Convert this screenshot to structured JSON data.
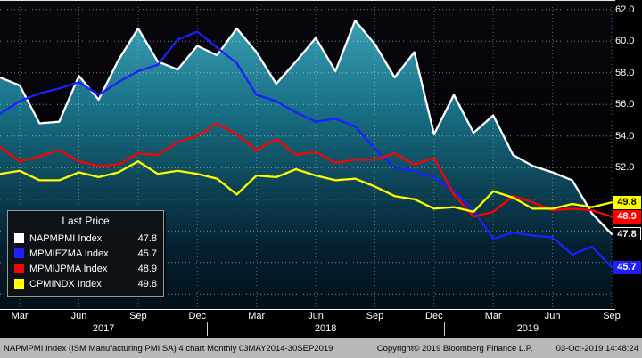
{
  "chart_data": {
    "type": "line",
    "title": "",
    "legend_title": "Last Price",
    "x": [
      "Feb 2017",
      "Mar 2017",
      "Apr 2017",
      "May 2017",
      "Jun 2017",
      "Jul 2017",
      "Aug 2017",
      "Sep 2017",
      "Oct 2017",
      "Nov 2017",
      "Dec 2017",
      "Jan 2018",
      "Feb 2018",
      "Mar 2018",
      "Apr 2018",
      "May 2018",
      "Jun 2018",
      "Jul 2018",
      "Aug 2018",
      "Sep 2018",
      "Oct 2018",
      "Nov 2018",
      "Dec 2018",
      "Jan 2019",
      "Feb 2019",
      "Mar 2019",
      "Apr 2019",
      "May 2019",
      "Jun 2019",
      "Jul 2019",
      "Aug 2019",
      "Sep 2019"
    ],
    "ylim": [
      43.0,
      62.6
    ],
    "y_ticks": [
      62.0,
      60.0,
      58.0,
      56.0,
      54.0,
      52.0
    ],
    "grid_values": [
      62,
      60,
      58,
      56,
      54,
      52,
      50,
      48,
      46,
      44
    ],
    "x_ticks": [
      {
        "label": "Mar",
        "i": 1
      },
      {
        "label": "Jun",
        "i": 4
      },
      {
        "label": "Sep",
        "i": 7
      },
      {
        "label": "Dec",
        "i": 10
      },
      {
        "label": "Mar",
        "i": 13
      },
      {
        "label": "Jun",
        "i": 16
      },
      {
        "label": "Sep",
        "i": 19
      },
      {
        "label": "Dec",
        "i": 22
      },
      {
        "label": "Mar",
        "i": 25
      },
      {
        "label": "Jun",
        "i": 28
      },
      {
        "label": "Sep",
        "i": 31
      }
    ],
    "years": [
      {
        "label": "2017",
        "center_i": 5.25
      },
      {
        "label": "2018",
        "center_i": 16.5
      },
      {
        "label": "2019",
        "center_i": 26.75
      }
    ],
    "year_separators_i": [
      10.5,
      22.5
    ],
    "series": [
      {
        "name": "NAPMPMI Index",
        "color": "#ffffff",
        "area": true,
        "last_price": "47.8",
        "values": [
          57.7,
          57.2,
          54.8,
          54.9,
          57.8,
          56.3,
          58.8,
          60.8,
          58.7,
          58.2,
          59.7,
          59.1,
          60.8,
          59.3,
          57.3,
          58.7,
          60.2,
          58.1,
          61.3,
          59.8,
          57.7,
          59.3,
          54.1,
          56.6,
          54.2,
          55.3,
          52.8,
          52.1,
          51.7,
          51.2,
          49.1,
          47.8
        ]
      },
      {
        "name": "MPMIEZMA Index",
        "color": "#1e1eff",
        "area": false,
        "last_price": "45.7",
        "values": [
          55.4,
          56.2,
          56.7,
          57.0,
          57.4,
          56.6,
          57.4,
          58.1,
          58.5,
          60.1,
          60.6,
          59.6,
          58.6,
          56.6,
          56.2,
          55.5,
          54.9,
          55.1,
          54.6,
          53.2,
          52.0,
          51.8,
          51.4,
          50.5,
          49.3,
          47.5,
          47.9,
          47.7,
          47.6,
          46.5,
          47.0,
          45.7
        ]
      },
      {
        "name": "MPMIJPMA Index",
        "color": "#ff0000",
        "area": false,
        "last_price": "48.9",
        "values": [
          53.3,
          52.4,
          52.7,
          53.1,
          52.4,
          52.1,
          52.2,
          52.9,
          52.8,
          53.6,
          54.0,
          54.8,
          54.1,
          53.1,
          53.8,
          52.8,
          53.0,
          52.3,
          52.5,
          52.5,
          52.9,
          52.2,
          52.6,
          50.3,
          48.9,
          49.2,
          50.2,
          49.8,
          49.3,
          49.4,
          49.3,
          48.9
        ]
      },
      {
        "name": "CPMINDX Index",
        "color": "#ffff00",
        "area": false,
        "last_price": "49.8",
        "values": [
          51.6,
          51.8,
          51.2,
          51.2,
          51.7,
          51.4,
          51.7,
          52.4,
          51.6,
          51.8,
          51.6,
          51.3,
          50.3,
          51.5,
          51.4,
          51.9,
          51.5,
          51.2,
          51.3,
          50.8,
          50.2,
          50.0,
          49.4,
          49.5,
          49.2,
          50.5,
          50.1,
          49.4,
          49.4,
          49.7,
          49.5,
          49.8
        ]
      }
    ],
    "colors": {
      "background": "#000000",
      "area_top": "#41a9bd",
      "area_bottom": "#021019",
      "grid": "#ffffff",
      "axis_text": "#ffffff"
    }
  },
  "footer": {
    "left": "NAPMPMI Index (ISM Manufacturing PMI SA) 4 chart Monthly 03MAY2014-30SEP2019",
    "copyright": "Copyright© 2019 Bloomberg Finance L.P.",
    "timestamp": "03-Oct-2019 14:48:24"
  }
}
